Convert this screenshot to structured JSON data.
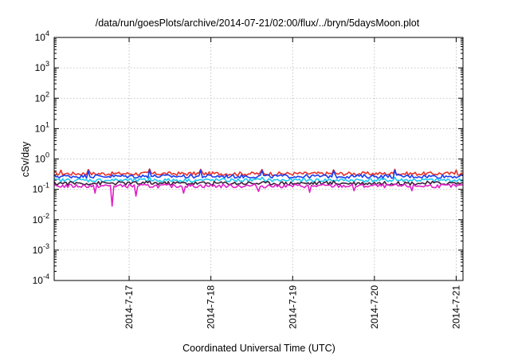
{
  "chart_data": {
    "type": "line",
    "title": "/data/run/goesPlots/archive/2014-07-21/02:00/flux/../bryn/5daysMoon.plot",
    "xlabel": "Coordinated Universal Time (UTC)",
    "ylabel": "cSv/day",
    "yscale": "log",
    "ylim": [
      0.0001,
      10000
    ],
    "xlim": [
      "2014-07-16 02:00",
      "2014-07-21 02:00"
    ],
    "x_ticks": [
      "2014-7-17",
      "2014-7-18",
      "2014-7-19",
      "2014-7-20",
      "2014-7-21"
    ],
    "y_ticks": [
      {
        "base": "10",
        "exp": "-4"
      },
      {
        "base": "10",
        "exp": "-3"
      },
      {
        "base": "10",
        "exp": "-2"
      },
      {
        "base": "10",
        "exp": "-1"
      },
      {
        "base": "10",
        "exp": "0"
      },
      {
        "base": "10",
        "exp": "1"
      },
      {
        "base": "10",
        "exp": "2"
      },
      {
        "base": "10",
        "exp": "3"
      },
      {
        "base": "10",
        "exp": "4"
      }
    ],
    "grid": true,
    "legend": "none",
    "series": [
      {
        "color": "#e8302a",
        "baseline": 0.33,
        "spikes": [
          [
            "2014-07-16 04:00",
            0.43
          ],
          [
            "2014-07-16 12:00",
            0.45
          ],
          [
            "2014-07-17 06:00",
            0.47
          ],
          [
            "2014-07-17 21:00",
            0.46
          ],
          [
            "2014-07-18 15:00",
            0.45
          ],
          [
            "2014-07-19 12:00",
            0.44
          ],
          [
            "2014-07-20 06:00",
            0.46
          ],
          [
            "2014-07-21 00:00",
            0.43
          ]
        ]
      },
      {
        "color": "#1a3df0",
        "baseline": 0.27,
        "spikes": [
          [
            "2014-07-16 12:00",
            0.41
          ],
          [
            "2014-07-17 06:00",
            0.44
          ],
          [
            "2014-07-17 21:00",
            0.43
          ],
          [
            "2014-07-18 15:00",
            0.42
          ],
          [
            "2014-07-19 12:00",
            0.41
          ],
          [
            "2014-07-20 06:00",
            0.43
          ]
        ]
      },
      {
        "color": "#1ec8f0",
        "baseline": 0.2,
        "spikes": [
          [
            "2014-07-17 06:00",
            0.26
          ],
          [
            "2014-07-18 15:00",
            0.25
          ],
          [
            "2014-07-20 06:00",
            0.25
          ]
        ]
      },
      {
        "color": "#3a1f3a",
        "baseline": 0.16,
        "spikes": [
          [
            "2014-07-17 06:00",
            0.19
          ],
          [
            "2014-07-19 12:00",
            0.19
          ]
        ]
      },
      {
        "color": "#e020c8",
        "baseline": 0.13,
        "spikes": [
          [
            "2014-07-16 14:00",
            0.075
          ],
          [
            "2014-07-16 19:00",
            0.028
          ],
          [
            "2014-07-17 02:00",
            0.06
          ],
          [
            "2014-07-17 16:00",
            0.075
          ],
          [
            "2014-07-18 14:00",
            0.085
          ],
          [
            "2014-07-19 05:00",
            0.08
          ],
          [
            "2014-07-19 18:00",
            0.09
          ],
          [
            "2014-07-20 11:00",
            0.09
          ]
        ]
      }
    ]
  }
}
